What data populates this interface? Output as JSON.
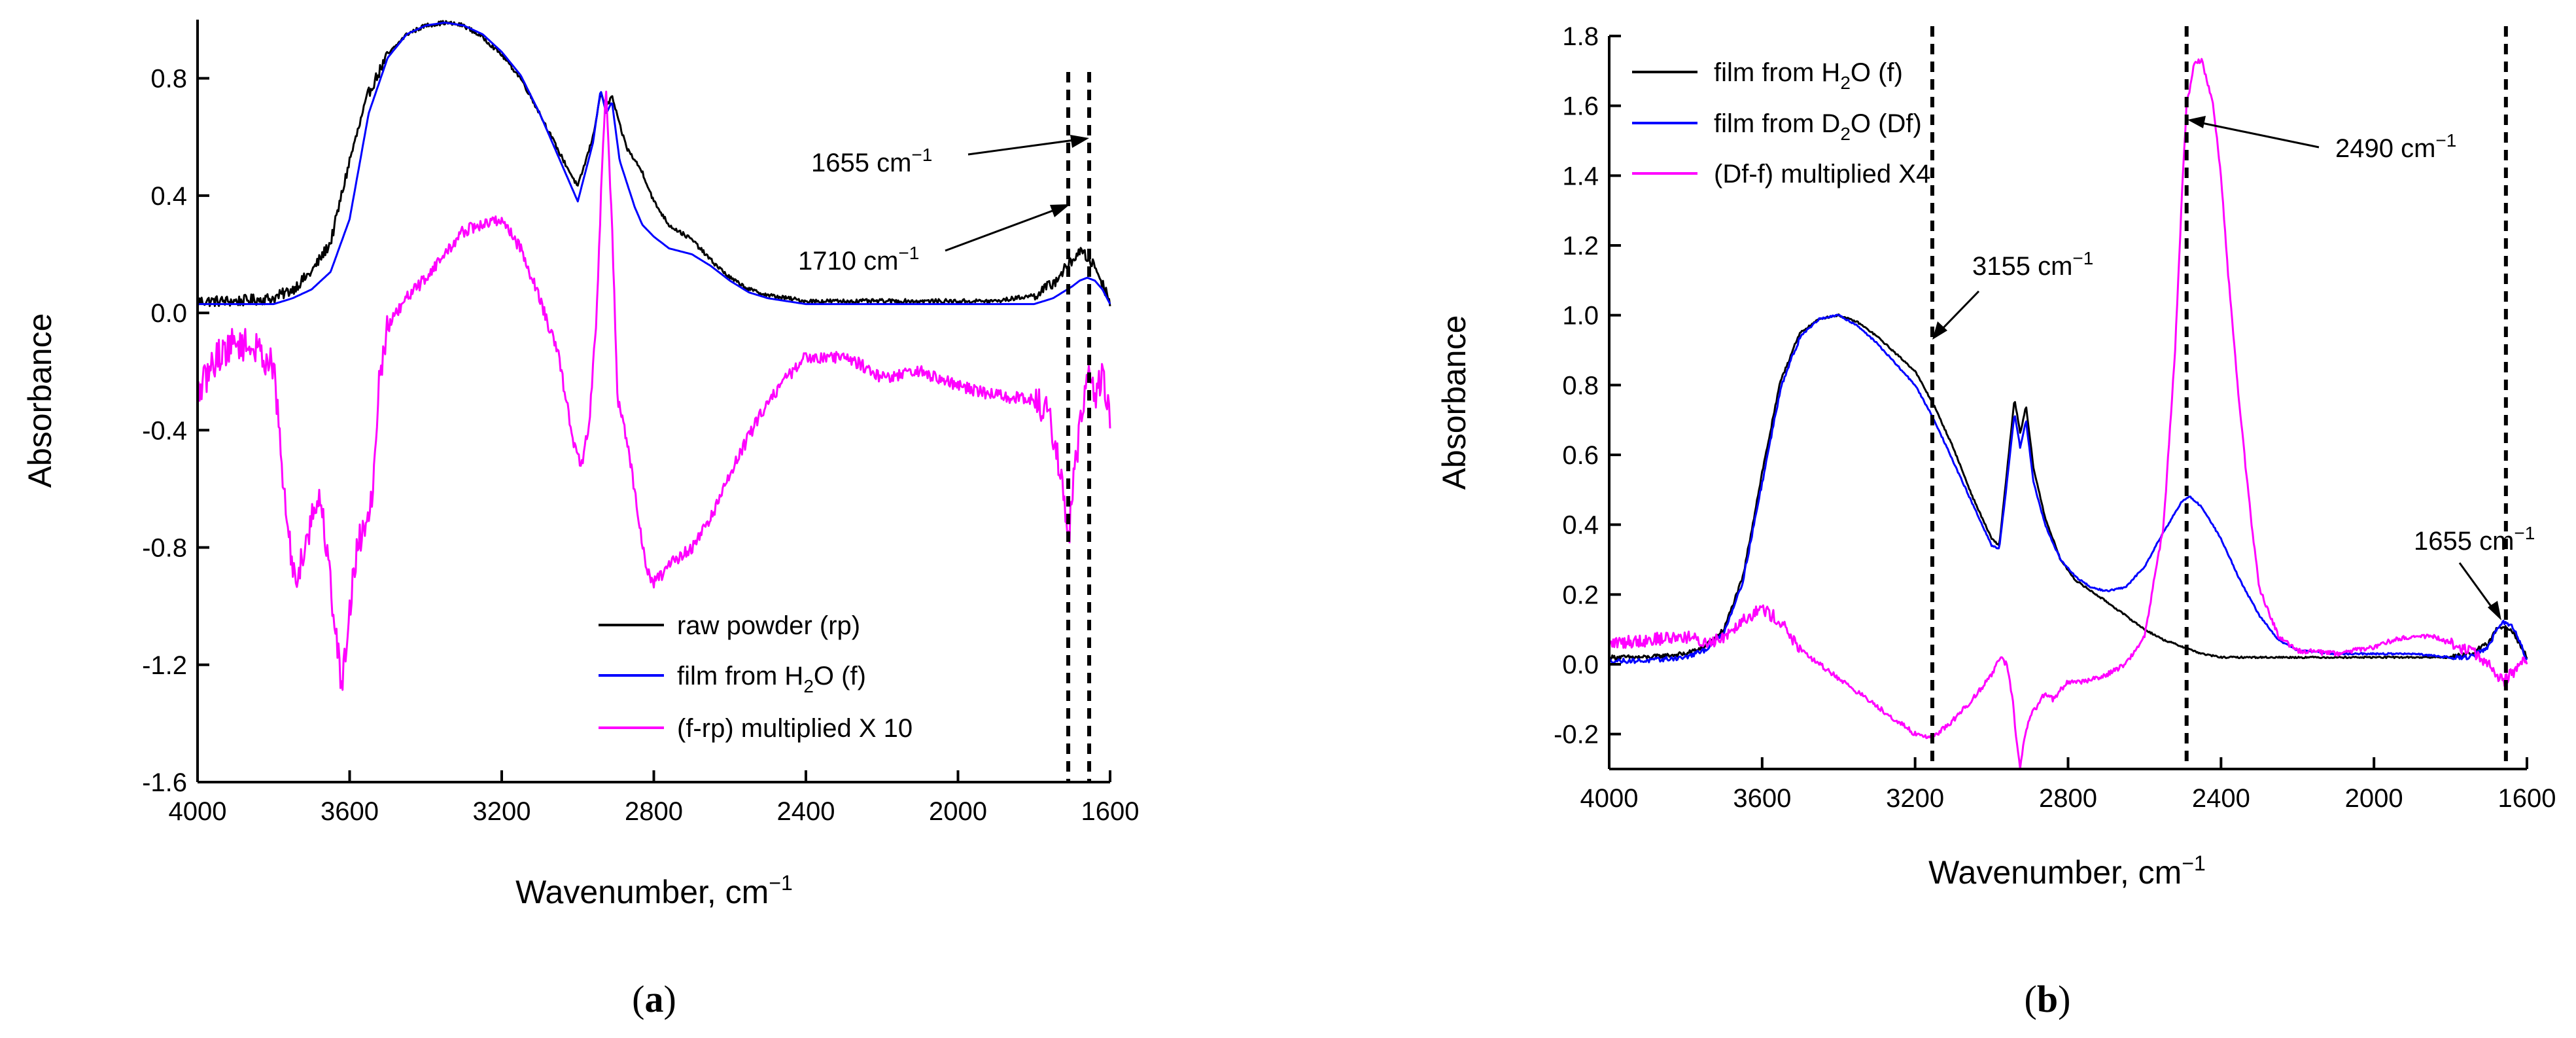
{
  "chart_data": [
    {
      "type": "line",
      "panel_label": "a",
      "xlabel": "Wavenumber, cm",
      "xlabel_sup": "−1",
      "ylabel": "Absorbance",
      "xlim": [
        4000,
        1600
      ],
      "ylim": [
        -1.6,
        1.0
      ],
      "xticks": [
        4000,
        3600,
        3200,
        2800,
        2400,
        2000,
        1600
      ],
      "xtick_labels": [
        "4000",
        "3600",
        "3200",
        "2800",
        "2400",
        "2000",
        "1600"
      ],
      "yticks": [
        -1.6,
        -1.2,
        -0.8,
        -0.4,
        0.0,
        0.4,
        0.8
      ],
      "ytick_labels": [
        "-1.6",
        "-1.2",
        "-0.8",
        "-0.4",
        "0.0",
        "0.4",
        "0.8"
      ],
      "legend_position": "bottom-right",
      "series": [
        {
          "name": "raw powder (rp)",
          "legend": {
            "pre": "raw powder (rp)"
          },
          "color": "#000000",
          "noise": 0.012,
          "x": [
            4000,
            3900,
            3800,
            3750,
            3700,
            3650,
            3600,
            3550,
            3500,
            3450,
            3400,
            3350,
            3300,
            3250,
            3200,
            3150,
            3100,
            3050,
            3000,
            2960,
            2940,
            2925,
            2910,
            2890,
            2870,
            2850,
            2830,
            2800,
            2760,
            2700,
            2650,
            2600,
            2550,
            2500,
            2450,
            2400,
            2300,
            2200,
            2100,
            2000,
            1900,
            1800,
            1750,
            1700,
            1680,
            1660,
            1640,
            1620,
            1600
          ],
          "y": [
            0.04,
            0.04,
            0.05,
            0.08,
            0.14,
            0.24,
            0.52,
            0.75,
            0.88,
            0.95,
            0.98,
            0.99,
            0.98,
            0.94,
            0.88,
            0.8,
            0.68,
            0.55,
            0.43,
            0.6,
            0.75,
            0.7,
            0.74,
            0.64,
            0.56,
            0.52,
            0.48,
            0.38,
            0.3,
            0.25,
            0.18,
            0.12,
            0.08,
            0.06,
            0.05,
            0.04,
            0.04,
            0.04,
            0.04,
            0.04,
            0.04,
            0.06,
            0.1,
            0.18,
            0.21,
            0.19,
            0.16,
            0.1,
            0.04
          ]
        },
        {
          "name": "film from H2O (f)",
          "legend": {
            "pre": "film from H",
            "sub": "2",
            "post": "O (f)"
          },
          "color": "#0000ff",
          "noise": 0,
          "x": [
            4000,
            3900,
            3800,
            3750,
            3700,
            3650,
            3600,
            3550,
            3500,
            3450,
            3400,
            3350,
            3300,
            3250,
            3200,
            3150,
            3100,
            3050,
            3000,
            2960,
            2940,
            2925,
            2910,
            2890,
            2870,
            2850,
            2830,
            2800,
            2760,
            2700,
            2650,
            2600,
            2550,
            2500,
            2450,
            2400,
            2300,
            2200,
            2100,
            2000,
            1900,
            1800,
            1750,
            1700,
            1680,
            1660,
            1640,
            1620,
            1600
          ],
          "y": [
            0.03,
            0.03,
            0.03,
            0.05,
            0.08,
            0.14,
            0.32,
            0.68,
            0.87,
            0.95,
            0.98,
            0.99,
            0.98,
            0.95,
            0.89,
            0.81,
            0.68,
            0.53,
            0.38,
            0.58,
            0.76,
            0.68,
            0.72,
            0.52,
            0.44,
            0.36,
            0.3,
            0.26,
            0.22,
            0.2,
            0.16,
            0.11,
            0.07,
            0.05,
            0.04,
            0.03,
            0.03,
            0.03,
            0.03,
            0.03,
            0.03,
            0.03,
            0.05,
            0.09,
            0.11,
            0.12,
            0.11,
            0.08,
            0.03
          ]
        },
        {
          "name": "(f-rp) multiplied X 10",
          "legend": {
            "pre": "(f-rp) multiplied X 10"
          },
          "color": "#ff00ff",
          "noise": 0.035,
          "x": [
            4000,
            3950,
            3900,
            3850,
            3800,
            3780,
            3760,
            3740,
            3720,
            3700,
            3680,
            3660,
            3640,
            3620,
            3600,
            3580,
            3560,
            3540,
            3520,
            3500,
            3450,
            3400,
            3350,
            3300,
            3250,
            3200,
            3150,
            3100,
            3050,
            3010,
            2990,
            2970,
            2950,
            2935,
            2925,
            2910,
            2895,
            2880,
            2860,
            2840,
            2820,
            2800,
            2750,
            2700,
            2650,
            2600,
            2550,
            2500,
            2450,
            2400,
            2350,
            2300,
            2250,
            2200,
            2100,
            2000,
            1900,
            1800,
            1760,
            1730,
            1710,
            1690,
            1670,
            1655,
            1640,
            1620,
            1600
          ],
          "y": [
            -0.28,
            -0.15,
            -0.1,
            -0.12,
            -0.18,
            -0.5,
            -0.78,
            -0.92,
            -0.8,
            -0.7,
            -0.62,
            -0.8,
            -1.05,
            -1.28,
            -1.0,
            -0.8,
            -0.72,
            -0.6,
            -0.2,
            -0.05,
            0.05,
            0.12,
            0.2,
            0.28,
            0.3,
            0.32,
            0.22,
            0.05,
            -0.15,
            -0.45,
            -0.52,
            -0.38,
            0.0,
            0.55,
            0.76,
            0.3,
            -0.3,
            -0.38,
            -0.52,
            -0.7,
            -0.88,
            -0.92,
            -0.85,
            -0.8,
            -0.7,
            -0.55,
            -0.42,
            -0.3,
            -0.22,
            -0.15,
            -0.15,
            -0.15,
            -0.18,
            -0.22,
            -0.2,
            -0.25,
            -0.28,
            -0.3,
            -0.35,
            -0.55,
            -0.78,
            -0.5,
            -0.3,
            -0.15,
            -0.3,
            -0.2,
            -0.35
          ]
        }
      ],
      "annotations": [
        {
          "text": "1655 cm",
          "sup": "−1",
          "x": 1655
        },
        {
          "text": "1710 cm",
          "sup": "−1",
          "x": 1710
        }
      ]
    },
    {
      "type": "line",
      "panel_label": "b",
      "xlabel": "Wavenumber, cm",
      "xlabel_sup": "−1",
      "ylabel": "Absorbance",
      "xlim": [
        4000,
        1600
      ],
      "ylim": [
        -0.3,
        1.8
      ],
      "xticks": [
        4000,
        3600,
        3200,
        2800,
        2400,
        2000,
        1600
      ],
      "xtick_labels": [
        "4000",
        "3600",
        "3200",
        "2800",
        "2400",
        "2000",
        "1600"
      ],
      "yticks": [
        -0.2,
        0.0,
        0.2,
        0.4,
        0.6,
        0.8,
        1.0,
        1.2,
        1.4,
        1.6,
        1.8
      ],
      "ytick_labels": [
        "-0.2",
        "0.0",
        "0.2",
        "0.4",
        "0.6",
        "0.8",
        "1.0",
        "1.2",
        "1.4",
        "1.6",
        "1.8"
      ],
      "legend_position": "top-left",
      "series": [
        {
          "name": "film from H2O (f)",
          "legend": {
            "pre": "film from H",
            "sub": "2",
            "post": "O (f)"
          },
          "color": "#000000",
          "noise": 0.004,
          "x": [
            4000,
            3900,
            3800,
            3750,
            3700,
            3650,
            3600,
            3550,
            3500,
            3450,
            3400,
            3350,
            3300,
            3250,
            3200,
            3150,
            3100,
            3050,
            3000,
            2980,
            2960,
            2940,
            2925,
            2910,
            2890,
            2860,
            2820,
            2780,
            2740,
            2700,
            2650,
            2600,
            2550,
            2500,
            2450,
            2400,
            2300,
            2200,
            2100,
            2000,
            1900,
            1800,
            1750,
            1700,
            1680,
            1660,
            1640,
            1620,
            1600
          ],
          "y": [
            0.02,
            0.02,
            0.03,
            0.05,
            0.1,
            0.25,
            0.55,
            0.82,
            0.95,
            0.99,
            1.0,
            0.98,
            0.94,
            0.89,
            0.84,
            0.74,
            0.62,
            0.48,
            0.36,
            0.34,
            0.55,
            0.76,
            0.66,
            0.74,
            0.56,
            0.42,
            0.3,
            0.24,
            0.21,
            0.18,
            0.14,
            0.1,
            0.07,
            0.05,
            0.03,
            0.02,
            0.02,
            0.02,
            0.02,
            0.02,
            0.02,
            0.02,
            0.03,
            0.06,
            0.1,
            0.11,
            0.1,
            0.06,
            0.02
          ]
        },
        {
          "name": "film from D2O (Df)",
          "legend": {
            "pre": "film from D",
            "sub": "2",
            "post": "O (Df)"
          },
          "color": "#0000ff",
          "noise": 0.004,
          "x": [
            4000,
            3900,
            3800,
            3750,
            3700,
            3650,
            3600,
            3550,
            3500,
            3450,
            3400,
            3350,
            3300,
            3250,
            3200,
            3150,
            3100,
            3050,
            3000,
            2980,
            2960,
            2940,
            2925,
            2910,
            2890,
            2860,
            2820,
            2780,
            2740,
            2700,
            2650,
            2600,
            2550,
            2500,
            2480,
            2450,
            2400,
            2350,
            2300,
            2250,
            2200,
            2100,
            2000,
            1900,
            1800,
            1750,
            1700,
            1680,
            1660,
            1640,
            1620,
            1600
          ],
          "y": [
            0.01,
            0.01,
            0.02,
            0.04,
            0.09,
            0.24,
            0.52,
            0.8,
            0.94,
            0.99,
            1.0,
            0.97,
            0.92,
            0.86,
            0.8,
            0.7,
            0.58,
            0.46,
            0.34,
            0.33,
            0.52,
            0.72,
            0.62,
            0.7,
            0.52,
            0.4,
            0.3,
            0.25,
            0.22,
            0.21,
            0.22,
            0.28,
            0.38,
            0.47,
            0.48,
            0.45,
            0.36,
            0.24,
            0.14,
            0.07,
            0.04,
            0.03,
            0.03,
            0.03,
            0.02,
            0.02,
            0.05,
            0.1,
            0.12,
            0.11,
            0.07,
            0.01
          ]
        },
        {
          "name": "(Df-f) multiplied X4",
          "legend": {
            "pre": "(Df-f) multiplied X4"
          },
          "color": "#ff00ff",
          "noise": 0.012,
          "x": [
            4000,
            3900,
            3800,
            3750,
            3700,
            3650,
            3600,
            3550,
            3500,
            3450,
            3400,
            3350,
            3300,
            3250,
            3200,
            3155,
            3100,
            3050,
            3000,
            2980,
            2960,
            2945,
            2935,
            2925,
            2915,
            2900,
            2880,
            2860,
            2840,
            2800,
            2760,
            2700,
            2650,
            2600,
            2550,
            2520,
            2500,
            2490,
            2470,
            2450,
            2420,
            2400,
            2380,
            2350,
            2320,
            2300,
            2250,
            2200,
            2100,
            2000,
            1950,
            1900,
            1850,
            1800,
            1750,
            1700,
            1680,
            1660,
            1640,
            1620,
            1600
          ],
          "y": [
            0.06,
            0.07,
            0.08,
            0.06,
            0.08,
            0.13,
            0.16,
            0.12,
            0.04,
            0.0,
            -0.04,
            -0.08,
            -0.12,
            -0.16,
            -0.2,
            -0.21,
            -0.16,
            -0.1,
            -0.03,
            0.02,
            0.0,
            -0.1,
            -0.22,
            -0.3,
            -0.22,
            -0.15,
            -0.12,
            -0.08,
            -0.1,
            -0.05,
            -0.05,
            -0.03,
            0.0,
            0.08,
            0.4,
            0.9,
            1.4,
            1.6,
            1.72,
            1.73,
            1.6,
            1.4,
            1.1,
            0.72,
            0.4,
            0.22,
            0.08,
            0.04,
            0.03,
            0.05,
            0.07,
            0.08,
            0.08,
            0.06,
            0.04,
            0.0,
            -0.03,
            -0.05,
            -0.03,
            0.0,
            0.01
          ]
        }
      ],
      "annotations": [
        {
          "text": "3155 cm",
          "sup": "−1",
          "x": 3155
        },
        {
          "text": "2490 cm",
          "sup": "−1",
          "x": 2490
        },
        {
          "text": "1655 cm",
          "sup": "−1",
          "x": 1655
        }
      ]
    }
  ]
}
